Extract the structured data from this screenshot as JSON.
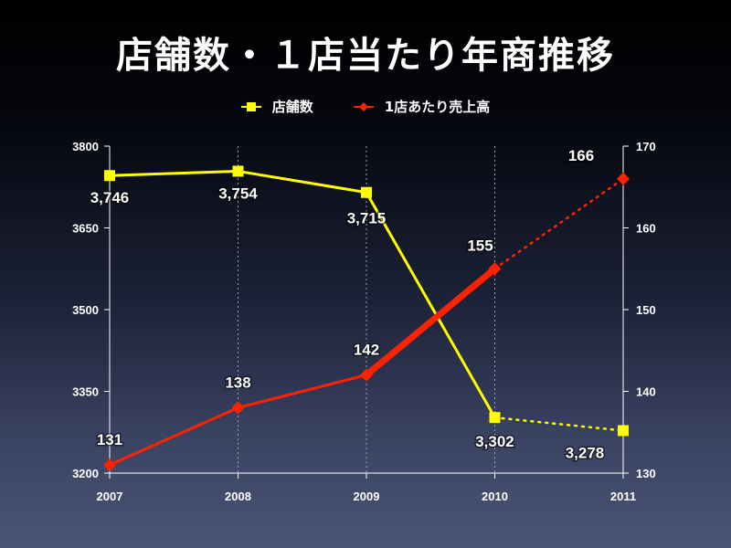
{
  "title": "店舗数・１店当たり年商推移",
  "chart_data": {
    "type": "line",
    "title": "店舗数・１店当たり年商推移",
    "x": [
      "2007",
      "2008",
      "2009",
      "2010",
      "2011"
    ],
    "series": [
      {
        "name": "店舗数",
        "axis": "left",
        "values": [
          3746,
          3754,
          3715,
          3302,
          3278
        ],
        "labels": [
          "3,746",
          "3,754",
          "3,715",
          "3,302",
          "3,278"
        ],
        "color": "#ffff00",
        "dashed_from_index": 3
      },
      {
        "name": "1店あたり売上高",
        "axis": "right",
        "values": [
          131,
          138,
          142,
          155,
          166
        ],
        "labels": [
          "131",
          "138",
          "142",
          "155",
          "166"
        ],
        "color": "#ff2200",
        "dashed_from_index": 3
      }
    ],
    "y_left": {
      "range": [
        3200,
        3800
      ],
      "ticks": [
        "3200",
        "3350",
        "3500",
        "3650",
        "3800"
      ]
    },
    "y_right": {
      "range": [
        130,
        170
      ],
      "ticks": [
        "130",
        "140",
        "150",
        "160",
        "170"
      ]
    },
    "grid": "vertical-dotted",
    "legend": "top-center"
  }
}
